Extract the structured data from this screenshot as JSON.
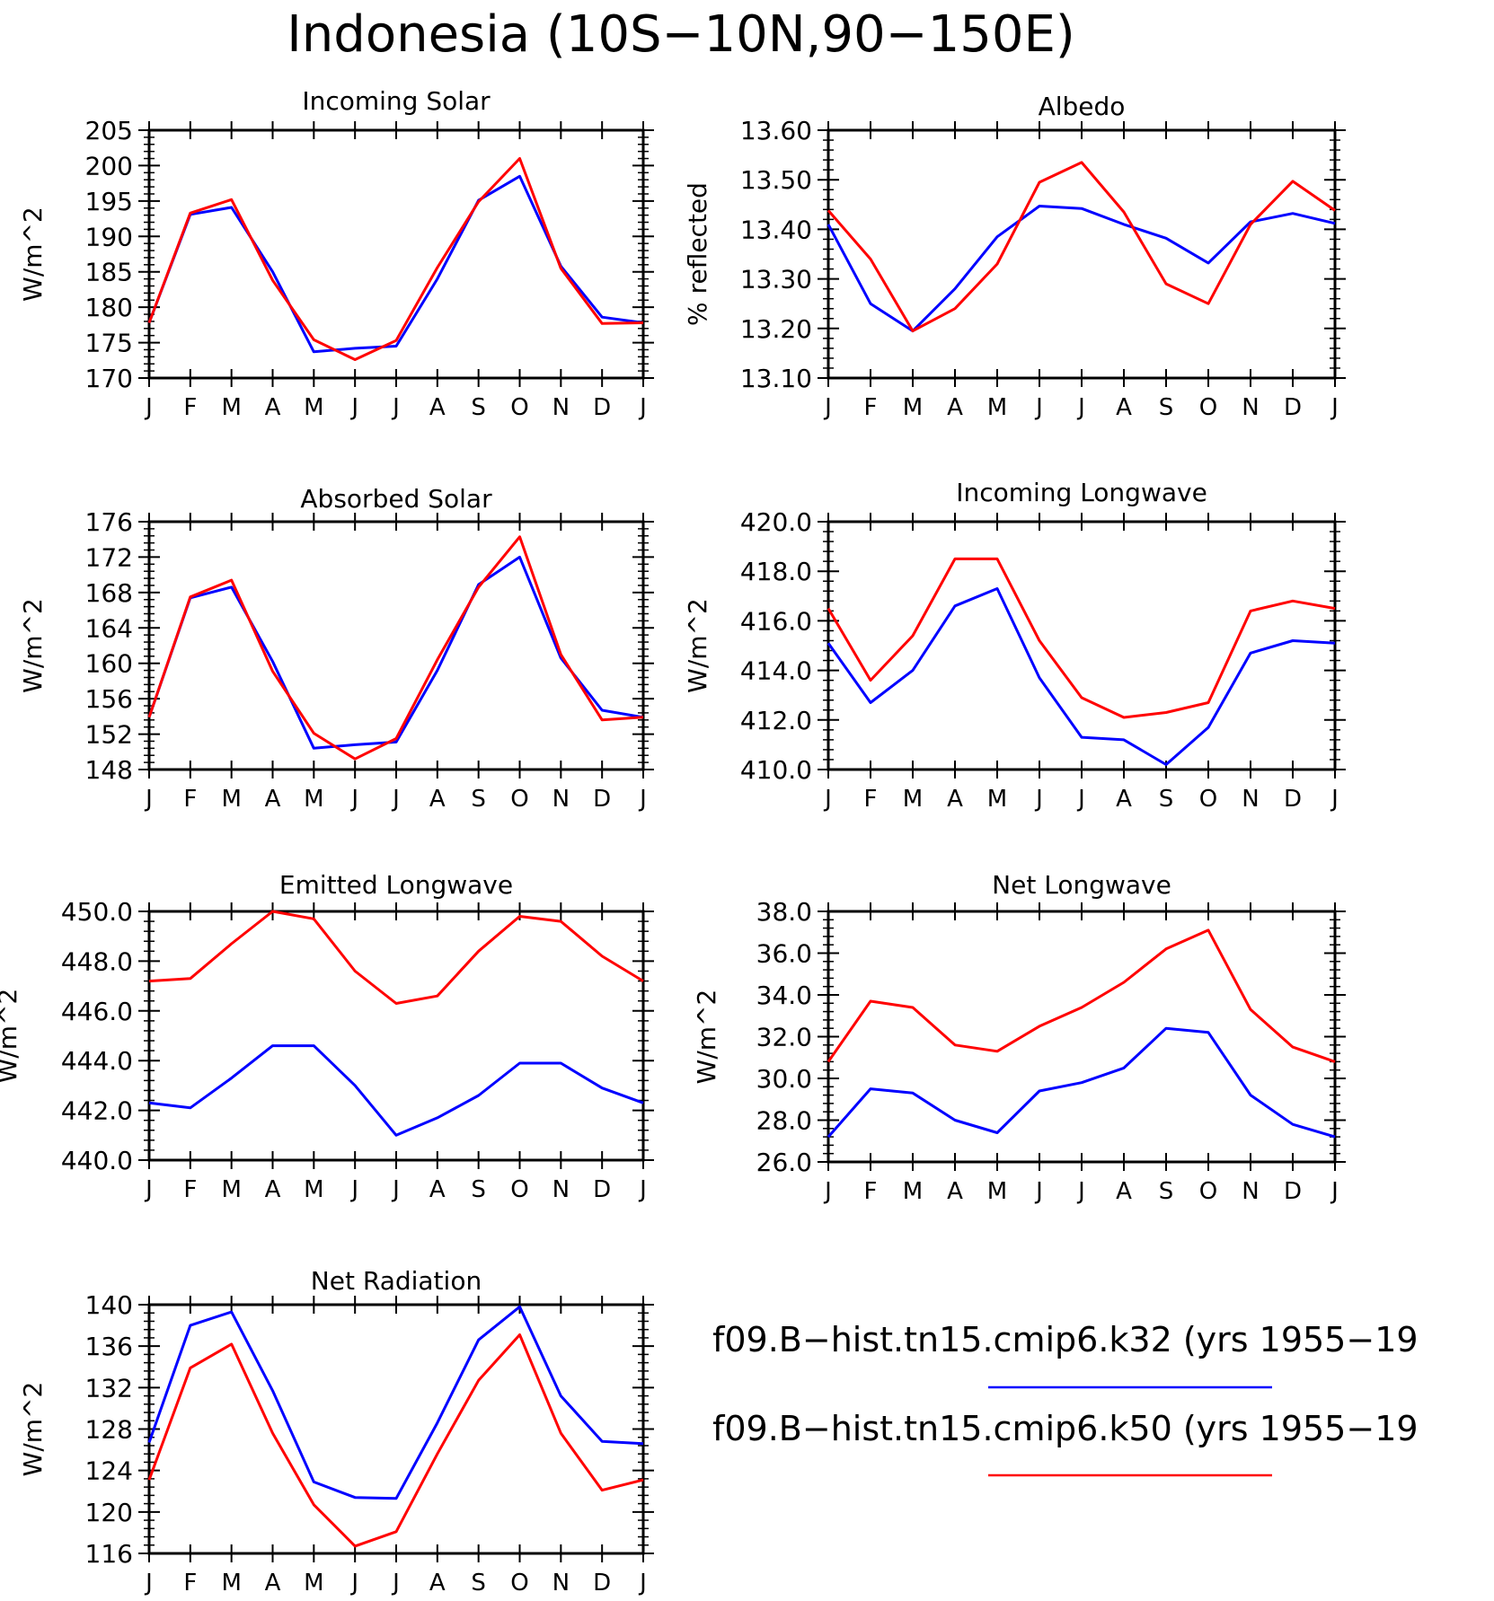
{
  "figure": {
    "title": "Indonesia (10S−10N,90−150E)"
  },
  "series_style": {
    "k32": "#0000ff",
    "k50": "#ff0000"
  },
  "legend": {
    "entries": [
      {
        "label": "f09.B−hist.tn15.cmip6.k32 (yrs 1955−19",
        "color": "#0000ff"
      },
      {
        "label": "f09.B−hist.tn15.cmip6.k50 (yrs 1955−19",
        "color": "#ff0000"
      }
    ]
  },
  "chart_data": [
    {
      "type": "line",
      "title": "Incoming Solar",
      "ylabel": "W/m^2",
      "x": [
        "J",
        "F",
        "M",
        "A",
        "M",
        "J",
        "J",
        "A",
        "S",
        "O",
        "N",
        "D",
        "J"
      ],
      "ylim": [
        170,
        205
      ],
      "yticks": [
        "170",
        "175",
        "180",
        "185",
        "190",
        "195",
        "200",
        "205"
      ],
      "series": [
        {
          "values": [
            177.8,
            193.1,
            194.1,
            185.0,
            173.7,
            174.2,
            174.5,
            184.0,
            195.1,
            198.5,
            185.8,
            178.6,
            177.8
          ]
        },
        {
          "values": [
            177.8,
            193.3,
            195.2,
            183.8,
            175.4,
            172.6,
            175.3,
            185.6,
            194.9,
            201.0,
            185.5,
            177.7,
            177.8
          ]
        }
      ]
    },
    {
      "type": "line",
      "title": "Albedo",
      "ylabel": "% reflected",
      "x": [
        "J",
        "F",
        "M",
        "A",
        "M",
        "J",
        "J",
        "A",
        "S",
        "O",
        "N",
        "D",
        "J"
      ],
      "ylim": [
        13.1,
        13.6
      ],
      "yticks": [
        "13.10",
        "13.20",
        "13.30",
        "13.40",
        "13.50",
        "13.60"
      ],
      "series": [
        {
          "values": [
            13.41,
            13.25,
            13.195,
            13.28,
            13.385,
            13.447,
            13.442,
            13.41,
            13.382,
            13.332,
            13.415,
            13.432,
            13.412
          ]
        },
        {
          "values": [
            13.438,
            13.34,
            13.195,
            13.24,
            13.33,
            13.495,
            13.535,
            13.435,
            13.29,
            13.25,
            13.41,
            13.497,
            13.438
          ]
        }
      ]
    },
    {
      "type": "line",
      "title": "Absorbed Solar",
      "ylabel": "W/m^2",
      "x": [
        "J",
        "F",
        "M",
        "A",
        "M",
        "J",
        "J",
        "A",
        "S",
        "O",
        "N",
        "D",
        "J"
      ],
      "ylim": [
        148,
        176
      ],
      "yticks": [
        "148",
        "152",
        "156",
        "160",
        "164",
        "168",
        "172",
        "176"
      ],
      "series": [
        {
          "values": [
            153.9,
            167.4,
            168.6,
            160.2,
            150.4,
            150.8,
            151.1,
            159.2,
            168.9,
            172.0,
            160.6,
            154.7,
            153.9
          ]
        },
        {
          "values": [
            153.9,
            167.5,
            169.4,
            159.1,
            152.1,
            149.2,
            151.5,
            160.4,
            168.6,
            174.3,
            161.0,
            153.6,
            153.9
          ]
        }
      ]
    },
    {
      "type": "line",
      "title": "Incoming Longwave",
      "ylabel": "W/m^2",
      "x": [
        "J",
        "F",
        "M",
        "A",
        "M",
        "J",
        "J",
        "A",
        "S",
        "O",
        "N",
        "D",
        "J"
      ],
      "ylim": [
        410.0,
        420.0
      ],
      "yticks": [
        "410.0",
        "412.0",
        "414.0",
        "416.0",
        "418.0",
        "420.0"
      ],
      "series": [
        {
          "values": [
            415.1,
            412.7,
            414.0,
            416.6,
            417.3,
            413.7,
            411.3,
            411.2,
            410.2,
            411.7,
            414.7,
            415.2,
            415.1
          ]
        },
        {
          "values": [
            416.5,
            413.6,
            415.4,
            418.5,
            418.5,
            415.2,
            412.9,
            412.1,
            412.3,
            412.7,
            416.4,
            416.8,
            416.5
          ]
        }
      ]
    },
    {
      "type": "line",
      "title": "Emitted Longwave",
      "ylabel": "W/m^2",
      "x": [
        "J",
        "F",
        "M",
        "A",
        "M",
        "J",
        "J",
        "A",
        "S",
        "O",
        "N",
        "D",
        "J"
      ],
      "ylim": [
        440.0,
        450.0
      ],
      "yticks": [
        "440.0",
        "442.0",
        "444.0",
        "446.0",
        "448.0",
        "450.0"
      ],
      "series": [
        {
          "values": [
            442.3,
            442.1,
            443.3,
            444.6,
            444.6,
            443.0,
            441.0,
            441.7,
            442.6,
            443.9,
            443.9,
            442.9,
            442.3
          ]
        },
        {
          "values": [
            447.2,
            447.3,
            448.7,
            450.0,
            449.7,
            447.6,
            446.3,
            446.6,
            448.4,
            449.8,
            449.6,
            448.2,
            447.2
          ]
        }
      ]
    },
    {
      "type": "line",
      "title": "Net Longwave",
      "ylabel": "W/m^2",
      "x": [
        "J",
        "F",
        "M",
        "A",
        "M",
        "J",
        "J",
        "A",
        "S",
        "O",
        "N",
        "D",
        "J"
      ],
      "ylim": [
        26.0,
        38.0
      ],
      "yticks": [
        "26.0",
        "28.0",
        "30.0",
        "32.0",
        "34.0",
        "36.0",
        "38.0"
      ],
      "series": [
        {
          "values": [
            27.2,
            29.5,
            29.3,
            28.0,
            27.4,
            29.4,
            29.8,
            30.5,
            32.4,
            32.2,
            29.2,
            27.8,
            27.2
          ]
        },
        {
          "values": [
            30.8,
            33.7,
            33.4,
            31.6,
            31.3,
            32.5,
            33.4,
            34.6,
            36.2,
            37.1,
            33.3,
            31.5,
            30.8
          ]
        }
      ]
    },
    {
      "type": "line",
      "title": "Net Radiation",
      "ylabel": "W/m^2",
      "x": [
        "J",
        "F",
        "M",
        "A",
        "M",
        "J",
        "J",
        "A",
        "S",
        "O",
        "N",
        "D",
        "J"
      ],
      "ylim": [
        116,
        140
      ],
      "yticks": [
        "116",
        "120",
        "124",
        "128",
        "132",
        "136",
        "140"
      ],
      "series": [
        {
          "values": [
            126.7,
            138.0,
            139.3,
            131.7,
            122.9,
            121.4,
            121.3,
            128.6,
            136.6,
            139.8,
            131.2,
            126.8,
            126.6
          ]
        },
        {
          "values": [
            123.1,
            133.9,
            136.2,
            127.6,
            120.7,
            116.7,
            118.1,
            125.6,
            132.7,
            137.1,
            127.6,
            122.1,
            123.1
          ]
        }
      ]
    }
  ]
}
